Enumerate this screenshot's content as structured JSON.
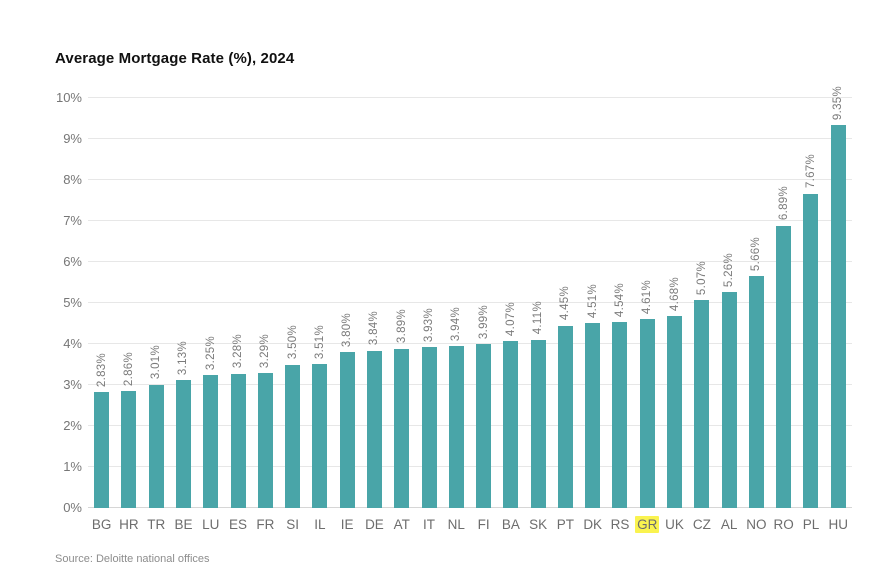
{
  "chart_data": {
    "type": "bar",
    "title": "Average Mortgage Rate (%), 2024",
    "categories": [
      "BG",
      "HR",
      "TR",
      "BE",
      "LU",
      "ES",
      "FR",
      "SI",
      "IL",
      "IE",
      "DE",
      "AT",
      "IT",
      "NL",
      "FI",
      "BA",
      "SK",
      "PT",
      "DK",
      "RS",
      "GR",
      "UK",
      "CZ",
      "AL",
      "NO",
      "RO",
      "PL",
      "HU"
    ],
    "values": [
      2.83,
      2.86,
      3.01,
      3.13,
      3.25,
      3.28,
      3.29,
      3.5,
      3.51,
      3.8,
      3.84,
      3.89,
      3.93,
      3.94,
      3.99,
      4.07,
      4.11,
      4.45,
      4.51,
      4.54,
      4.61,
      4.68,
      5.07,
      5.26,
      5.66,
      6.89,
      7.67,
      9.35
    ],
    "value_labels": [
      "2.83%",
      "2.86%",
      "3.01%",
      "3.13%",
      "3.25%",
      "3.28%",
      "3.29%",
      "3.50%",
      "3.51%",
      "3.80%",
      "3.84%",
      "3.89%",
      "3.93%",
      "3.94%",
      "3.99%",
      "4.07%",
      "4.11%",
      "4.45%",
      "4.51%",
      "4.54%",
      "4.61%",
      "4.68%",
      "5.07%",
      "5.26%",
      "5.66%",
      "6.89%",
      "7.67%",
      "9.35%"
    ],
    "highlighted_category": "GR",
    "xlabel": "",
    "ylabel": "",
    "ylim": [
      0,
      10
    ],
    "ytick_step": 1,
    "ytick_labels": [
      "0%",
      "1%",
      "2%",
      "3%",
      "4%",
      "5%",
      "6%",
      "7%",
      "8%",
      "9%",
      "10%"
    ],
    "grid": "horizontal",
    "legend": "none",
    "bar_color": "#49A5A8",
    "highlight_color": "#FAF34F"
  },
  "source": "Source: Deloitte national offices"
}
